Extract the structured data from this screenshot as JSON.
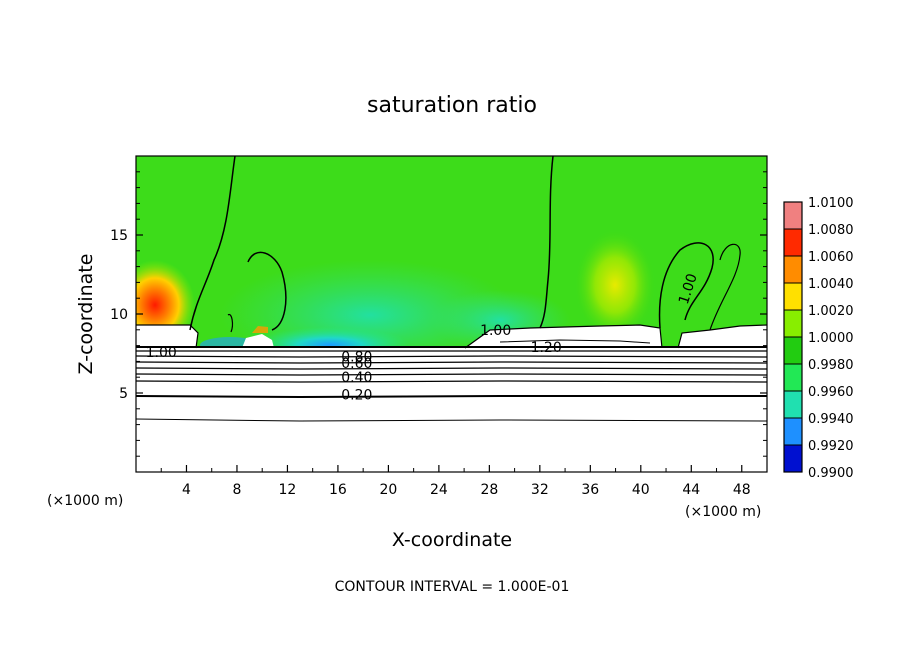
{
  "chart_data": {
    "type": "heatmap",
    "title": "saturation ratio",
    "xlabel": "X-coordinate",
    "ylabel": "Z-coordinate",
    "x_unit": "(×1000 m)",
    "x_unit_right": "(×1000 m)",
    "footer": "CONTOUR INTERVAL = 1.000E-01",
    "xlim": [
      0,
      50
    ],
    "ylim": [
      0,
      20
    ],
    "x_ticks": [
      "4",
      "8",
      "12",
      "16",
      "20",
      "24",
      "28",
      "32",
      "36",
      "40",
      "44",
      "48"
    ],
    "y_ticks": [
      "5",
      "10",
      "15"
    ],
    "colorbar": {
      "levels": [
        "1.0100",
        "1.0080",
        "1.0060",
        "1.0040",
        "1.0020",
        "1.0000",
        "0.9980",
        "0.9960",
        "0.9940",
        "0.9920",
        "0.9900"
      ],
      "colors": [
        "#f08080",
        "#ff2a00",
        "#ff8c00",
        "#ffe000",
        "#88ee00",
        "#22cc11",
        "#22e855",
        "#20e0b0",
        "#1e90ff",
        "#0010d0",
        "#6a0dad"
      ]
    },
    "contour_labels": [
      {
        "text": "1.00",
        "x": 2.0,
        "z": 7.6
      },
      {
        "text": "0.80",
        "x": 17.5,
        "z": 7.3
      },
      {
        "text": "0.60",
        "x": 17.5,
        "z": 6.9
      },
      {
        "text": "0.40",
        "x": 17.5,
        "z": 6.0
      },
      {
        "text": "0.20",
        "x": 17.5,
        "z": 4.9
      },
      {
        "text": "1.00",
        "x": 28.5,
        "z": 9.0
      },
      {
        "text": "1.20",
        "x": 32.5,
        "z": 7.9
      },
      {
        "text": "1.00",
        "x": 43.7,
        "z": 11.6
      }
    ],
    "grid": false
  }
}
